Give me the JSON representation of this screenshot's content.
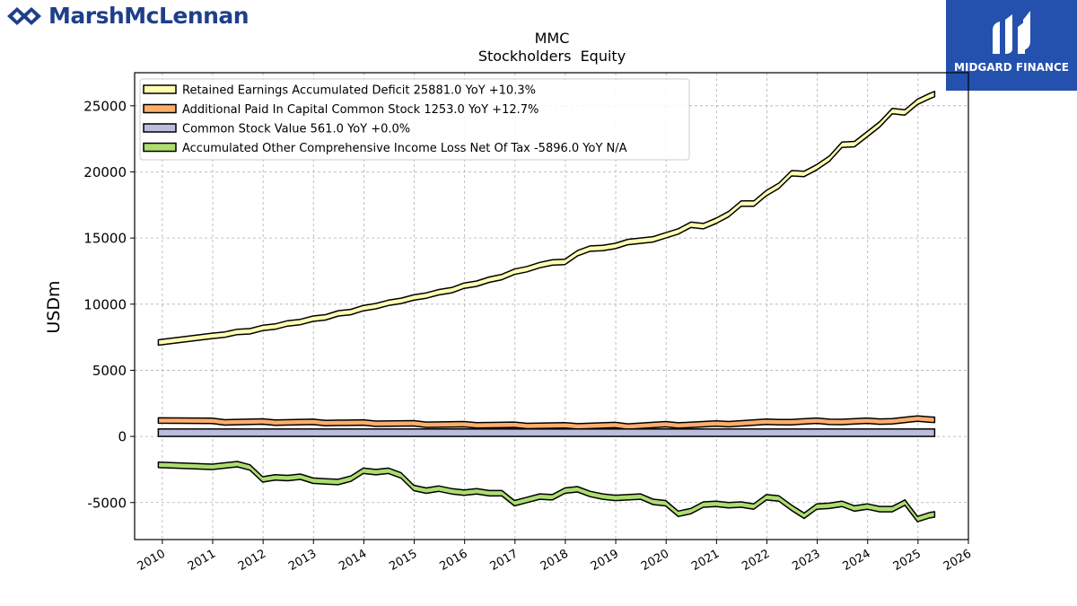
{
  "header": {
    "left_logo_text": "MarshMcLennan",
    "right_logo_text": "MIDGARD FINANCE"
  },
  "colors": {
    "retained": "#ffffb2",
    "apic": "#fdae6b",
    "common": "#bcbddc",
    "aoci": "#addd70",
    "outline": "#000000",
    "grid": "#b0b0b0",
    "logo_blue": "#1f3f8a",
    "logo_box": "#2451ad"
  },
  "chart_data": {
    "type": "line",
    "title": "MMC",
    "subtitle": "Stockholders  Equity",
    "xlabel": "",
    "ylabel": "USDm",
    "xlim": [
      2009.45,
      2026.0
    ],
    "ylim": [
      -7800,
      27500
    ],
    "xticks": [
      "2010",
      "2011",
      "2012",
      "2013",
      "2014",
      "2015",
      "2016",
      "2017",
      "2018",
      "2019",
      "2020",
      "2021",
      "2022",
      "2023",
      "2024",
      "2025",
      "2026"
    ],
    "yticks": [
      -5000,
      0,
      5000,
      10000,
      15000,
      20000,
      25000
    ],
    "grid": true,
    "legend_position": "top-left",
    "series": [
      {
        "name": "Retained Earnings Accumulated Deficit  25881.0 YoY +10.3%",
        "color_key": "retained",
        "x": [
          2009.92,
          2010.99,
          2011.24,
          2011.49,
          2011.74,
          2011.99,
          2012.24,
          2012.49,
          2012.74,
          2012.99,
          2013.24,
          2013.49,
          2013.74,
          2013.99,
          2014.24,
          2014.49,
          2014.74,
          2014.99,
          2015.24,
          2015.49,
          2015.74,
          2015.99,
          2016.24,
          2016.49,
          2016.74,
          2016.99,
          2017.24,
          2017.49,
          2017.74,
          2017.99,
          2018.24,
          2018.49,
          2018.74,
          2018.99,
          2019.24,
          2019.49,
          2019.74,
          2019.99,
          2020.24,
          2020.49,
          2020.74,
          2020.99,
          2021.24,
          2021.49,
          2021.74,
          2021.99,
          2022.24,
          2022.49,
          2022.74,
          2022.99,
          2023.24,
          2023.49,
          2023.74,
          2023.99,
          2024.24,
          2024.49,
          2024.74,
          2024.99,
          2025.24,
          2025.33
        ],
        "values": [
          7100,
          7600,
          7700,
          7900,
          7950,
          8200,
          8300,
          8550,
          8650,
          8900,
          9000,
          9300,
          9400,
          9700,
          9850,
          10100,
          10250,
          10500,
          10650,
          10900,
          11050,
          11400,
          11550,
          11850,
          12050,
          12450,
          12650,
          12950,
          13150,
          13200,
          13850,
          14200,
          14250,
          14400,
          14700,
          14800,
          14900,
          15200,
          15500,
          16000,
          15900,
          16300,
          16800,
          17600,
          17600,
          18400,
          18950,
          19900,
          19850,
          20350,
          21000,
          22050,
          22100,
          22850,
          23600,
          24600,
          24500,
          25300,
          25750,
          25881
        ]
      },
      {
        "name": "Additional Paid In Capital Common Stock  1253.0 YoY +12.7%",
        "color_key": "apic",
        "x": [
          2009.92,
          2010.99,
          2011.24,
          2011.99,
          2012.24,
          2012.99,
          2013.24,
          2013.99,
          2014.24,
          2014.99,
          2015.24,
          2015.99,
          2016.24,
          2016.99,
          2017.24,
          2017.99,
          2018.24,
          2018.99,
          2019.24,
          2019.99,
          2020.24,
          2020.99,
          2021.24,
          2021.99,
          2022.24,
          2022.49,
          2022.99,
          2023.24,
          2023.49,
          2023.99,
          2024.24,
          2024.49,
          2024.99,
          2025.24,
          2025.33
        ],
        "values": [
          1200,
          1180,
          1060,
          1130,
          1040,
          1100,
          1010,
          1050,
          960,
          990,
          880,
          920,
          840,
          880,
          790,
          840,
          760,
          860,
          750,
          920,
          830,
          980,
          920,
          1110,
          1070,
          1080,
          1190,
          1100,
          1090,
          1190,
          1120,
          1140,
          1350,
          1270,
          1253
        ]
      },
      {
        "name": "Common Stock Value  561.0 YoY +0.0%",
        "color_key": "common",
        "x": [
          2009.92,
          2025.33
        ],
        "values": [
          561,
          561
        ]
      },
      {
        "name": "Accumulated Other Comprehensive Income Loss Net Of Tax  -5896.0 YoY N/A",
        "color_key": "aoci",
        "x": [
          2009.92,
          2010.99,
          2011.49,
          2011.74,
          2011.99,
          2012.24,
          2012.49,
          2012.74,
          2012.99,
          2013.24,
          2013.49,
          2013.74,
          2013.99,
          2014.24,
          2014.49,
          2014.74,
          2014.99,
          2015.24,
          2015.49,
          2015.74,
          2015.99,
          2016.24,
          2016.49,
          2016.74,
          2016.99,
          2017.24,
          2017.49,
          2017.74,
          2017.99,
          2018.24,
          2018.49,
          2018.74,
          2018.99,
          2019.24,
          2019.49,
          2019.74,
          2019.99,
          2020.24,
          2020.49,
          2020.74,
          2020.99,
          2021.24,
          2021.49,
          2021.74,
          2021.99,
          2022.24,
          2022.49,
          2022.74,
          2022.99,
          2023.24,
          2023.49,
          2023.74,
          2023.99,
          2024.24,
          2024.49,
          2024.74,
          2024.99,
          2025.24,
          2025.33
        ],
        "values": [
          -2150,
          -2300,
          -2100,
          -2350,
          -3250,
          -3100,
          -3150,
          -3050,
          -3350,
          -3400,
          -3450,
          -3200,
          -2600,
          -2700,
          -2600,
          -2950,
          -3900,
          -4100,
          -3950,
          -4150,
          -4250,
          -4150,
          -4300,
          -4300,
          -5050,
          -4800,
          -4550,
          -4600,
          -4100,
          -4000,
          -4350,
          -4550,
          -4650,
          -4600,
          -4550,
          -4950,
          -5050,
          -5850,
          -5650,
          -5150,
          -5100,
          -5200,
          -5150,
          -5300,
          -4600,
          -4700,
          -5400,
          -6000,
          -5300,
          -5250,
          -5100,
          -5450,
          -5300,
          -5500,
          -5500,
          -5000,
          -6250,
          -5950,
          -5896
        ]
      }
    ]
  }
}
